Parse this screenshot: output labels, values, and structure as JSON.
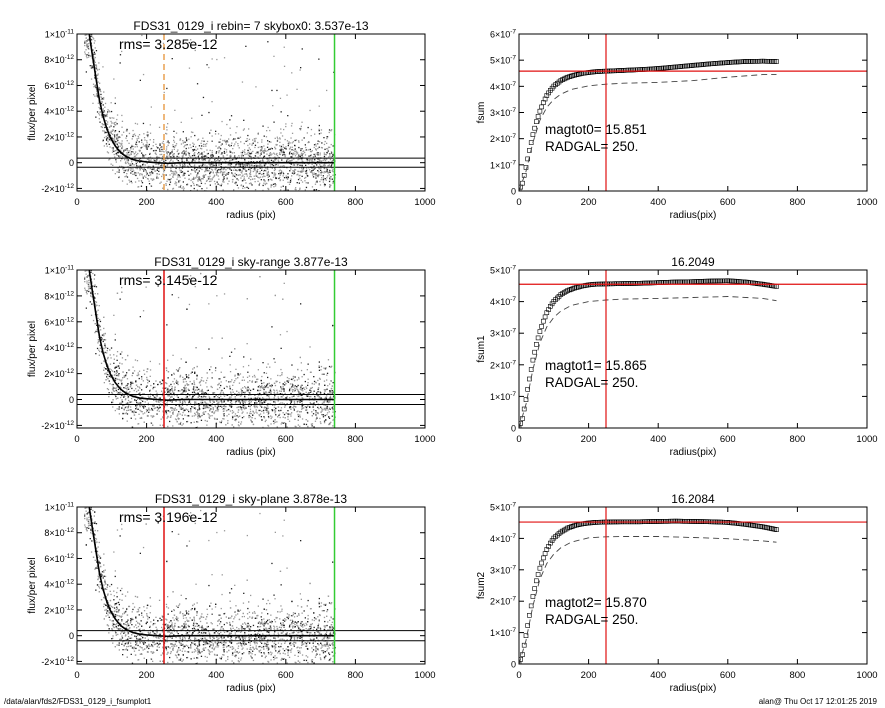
{
  "footer": {
    "path": "/data/alan/fds2/FDS31_0129_i_fsumplot1",
    "stamp": "alan@  Thu Oct 17 12:01:25 2019"
  },
  "chart_data": [
    {
      "type": "scatter",
      "title": "FDS31_0129_i rebin= 7    skybox0:  3.537e-13",
      "annotation": "rms= 3.285e-12",
      "xlabel": "radius (pix)",
      "ylabel": "flux/per pixel",
      "xlim": [
        0,
        1000
      ],
      "ylim": [
        -2.2e-12,
        1e-11
      ],
      "x_ticks": [
        "0",
        "200",
        "400",
        "600",
        "800",
        "1000"
      ],
      "y_ticks": [
        {
          "v": 1e-11,
          "base": "1×10",
          "exp": "-11"
        },
        {
          "v": 8e-12,
          "base": "8×10",
          "exp": "-12"
        },
        {
          "v": 6e-12,
          "base": "6×10",
          "exp": "-12"
        },
        {
          "v": 4e-12,
          "base": "4×10",
          "exp": "-12"
        },
        {
          "v": 2e-12,
          "base": "2×10",
          "exp": "-12"
        },
        {
          "v": 0,
          "base": "0",
          "exp": ""
        },
        {
          "v": -2e-12,
          "base": "-2×10",
          "exp": "-12"
        }
      ],
      "hlines": [
        {
          "y": 3.5e-13,
          "color": "#000000"
        },
        {
          "y": -3.5e-13,
          "color": "#000000"
        }
      ],
      "vlines": [
        {
          "x": 250,
          "color": "#e8a050",
          "dash": true
        },
        {
          "x": 740,
          "color": "#33cc33",
          "dash": false
        }
      ],
      "profile": {
        "x": [
          35,
          45,
          55,
          65,
          75,
          85,
          95,
          110,
          125,
          140,
          160,
          180,
          200,
          230,
          260,
          300,
          400,
          500,
          600,
          700,
          740
        ],
        "y": [
          1e-11,
          8.2e-12,
          6.5e-12,
          4.8e-12,
          3.6e-12,
          2.7e-12,
          2e-12,
          1.3e-12,
          8e-13,
          5e-13,
          2.5e-13,
          1.2e-13,
          6e-14,
          0,
          -5e-14,
          0,
          0,
          0,
          0,
          0,
          0
        ]
      }
    },
    {
      "type": "line",
      "title": "",
      "annotations": [
        "magtot0=  15.851",
        "RADGAL=    250."
      ],
      "xlabel": "radius(pix)",
      "ylabel": "fsum",
      "xlim": [
        0,
        1000
      ],
      "ylim": [
        0,
        6e-07
      ],
      "x_ticks": [
        "0",
        "200",
        "400",
        "600",
        "800",
        "1000"
      ],
      "y_ticks": [
        {
          "v": 6e-07,
          "base": "6×10",
          "exp": "-7"
        },
        {
          "v": 5e-07,
          "base": "5×10",
          "exp": "-7"
        },
        {
          "v": 4e-07,
          "base": "4×10",
          "exp": "-7"
        },
        {
          "v": 3e-07,
          "base": "3×10",
          "exp": "-7"
        },
        {
          "v": 2e-07,
          "base": "2×10",
          "exp": "-7"
        },
        {
          "v": 1e-07,
          "base": "1×10",
          "exp": "-7"
        },
        {
          "v": 0,
          "base": "0",
          "exp": ""
        }
      ],
      "hline": {
        "y": 4.58e-07,
        "color": "#e01010"
      },
      "vline": {
        "x": 250,
        "color": "#e01010"
      },
      "series": [
        {
          "style": "markers",
          "x": [
            0,
            10,
            20,
            30,
            40,
            50,
            60,
            70,
            80,
            90,
            100,
            120,
            140,
            160,
            180,
            200,
            220,
            250,
            300,
            350,
            400,
            450,
            500,
            550,
            600,
            650,
            700,
            740
          ],
          "y": [
            0,
            3e-08,
            9e-08,
            1.55e-07,
            2.15e-07,
            2.65e-07,
            3.05e-07,
            3.38e-07,
            3.65e-07,
            3.85e-07,
            4.01e-07,
            4.22e-07,
            4.35e-07,
            4.43e-07,
            4.49e-07,
            4.53e-07,
            4.56e-07,
            4.58e-07,
            4.61e-07,
            4.64e-07,
            4.68e-07,
            4.74e-07,
            4.8e-07,
            4.86e-07,
            4.91e-07,
            4.95e-07,
            4.96e-07,
            4.95e-07
          ]
        },
        {
          "style": "dashed",
          "x": [
            0,
            20,
            40,
            60,
            80,
            100,
            120,
            150,
            200,
            250,
            300,
            400,
            500,
            600,
            700,
            740
          ],
          "y": [
            0,
            7.5e-08,
            1.85e-07,
            2.7e-07,
            3.2e-07,
            3.5e-07,
            3.7e-07,
            3.88e-07,
            4.02e-07,
            4.08e-07,
            4.12e-07,
            4.15e-07,
            4.22e-07,
            4.35e-07,
            4.45e-07,
            4.45e-07
          ]
        }
      ]
    },
    {
      "type": "scatter",
      "title": "FDS31_0129_i sky-range  3.877e-13",
      "annotation": "rms= 3.145e-12",
      "xlabel": "radius (pix)",
      "ylabel": "flux/per pixel",
      "xlim": [
        0,
        1000
      ],
      "ylim": [
        -2.2e-12,
        1e-11
      ],
      "x_ticks": [
        "0",
        "200",
        "400",
        "600",
        "800",
        "1000"
      ],
      "y_ticks": [
        {
          "v": 1e-11,
          "base": "1×10",
          "exp": "-11"
        },
        {
          "v": 8e-12,
          "base": "8×10",
          "exp": "-12"
        },
        {
          "v": 6e-12,
          "base": "6×10",
          "exp": "-12"
        },
        {
          "v": 4e-12,
          "base": "4×10",
          "exp": "-12"
        },
        {
          "v": 2e-12,
          "base": "2×10",
          "exp": "-12"
        },
        {
          "v": 0,
          "base": "0",
          "exp": ""
        },
        {
          "v": -2e-12,
          "base": "-2×10",
          "exp": "-12"
        }
      ],
      "hlines": [
        {
          "y": 3.9e-13,
          "color": "#000000"
        },
        {
          "y": -3.9e-13,
          "color": "#000000"
        }
      ],
      "vlines": [
        {
          "x": 250,
          "color": "#e01010",
          "dash": false
        },
        {
          "x": 740,
          "color": "#33cc33",
          "dash": false
        }
      ],
      "profile": {
        "x": [
          35,
          45,
          55,
          65,
          75,
          85,
          95,
          110,
          125,
          140,
          160,
          180,
          200,
          230,
          260,
          300,
          400,
          500,
          600,
          700,
          740
        ],
        "y": [
          1e-11,
          8.2e-12,
          6.5e-12,
          4.8e-12,
          3.6e-12,
          2.7e-12,
          2e-12,
          1.3e-12,
          8e-13,
          5e-13,
          2.5e-13,
          1.2e-13,
          6e-14,
          0,
          -5e-14,
          0,
          0,
          0,
          0,
          0,
          0
        ]
      }
    },
    {
      "type": "line",
      "title": "16.2049",
      "annotations": [
        "magtot1=  15.865",
        "RADGAL=    250."
      ],
      "xlabel": "radius(pix)",
      "ylabel": "fsum1",
      "xlim": [
        0,
        1000
      ],
      "ylim": [
        0,
        5e-07
      ],
      "x_ticks": [
        "0",
        "200",
        "400",
        "600",
        "800",
        "1000"
      ],
      "y_ticks": [
        {
          "v": 5e-07,
          "base": "5×10",
          "exp": "-7"
        },
        {
          "v": 4e-07,
          "base": "4×10",
          "exp": "-7"
        },
        {
          "v": 3e-07,
          "base": "3×10",
          "exp": "-7"
        },
        {
          "v": 2e-07,
          "base": "2×10",
          "exp": "-7"
        },
        {
          "v": 1e-07,
          "base": "1×10",
          "exp": "-7"
        },
        {
          "v": 0,
          "base": "0",
          "exp": ""
        }
      ],
      "hline": {
        "y": 4.55e-07,
        "color": "#e01010"
      },
      "vline": {
        "x": 250,
        "color": "#e01010"
      },
      "series": [
        {
          "style": "markers",
          "x": [
            0,
            10,
            20,
            30,
            40,
            50,
            60,
            70,
            80,
            90,
            100,
            120,
            140,
            160,
            180,
            200,
            220,
            250,
            300,
            350,
            400,
            450,
            500,
            550,
            600,
            650,
            700,
            740
          ],
          "y": [
            0,
            3e-08,
            9e-08,
            1.55e-07,
            2.15e-07,
            2.65e-07,
            3.05e-07,
            3.38e-07,
            3.65e-07,
            3.85e-07,
            4.01e-07,
            4.22e-07,
            4.35e-07,
            4.43e-07,
            4.49e-07,
            4.53e-07,
            4.55e-07,
            4.56e-07,
            4.57e-07,
            4.58e-07,
            4.6e-07,
            4.62e-07,
            4.63e-07,
            4.65e-07,
            4.66e-07,
            4.62e-07,
            4.55e-07,
            4.48e-07
          ]
        },
        {
          "style": "dashed",
          "x": [
            0,
            20,
            40,
            60,
            80,
            100,
            120,
            150,
            200,
            250,
            300,
            400,
            500,
            600,
            700,
            740
          ],
          "y": [
            0,
            7.5e-08,
            1.85e-07,
            2.7e-07,
            3.2e-07,
            3.5e-07,
            3.7e-07,
            3.88e-07,
            4e-07,
            4.05e-07,
            4.08e-07,
            4.1e-07,
            4.13e-07,
            4.16e-07,
            4.1e-07,
            4.03e-07
          ]
        }
      ]
    },
    {
      "type": "scatter",
      "title": "FDS31_0129_i sky-plane  3.878e-13",
      "annotation": "rms= 3.196e-12",
      "xlabel": "radius (pix)",
      "ylabel": "flux/per pixel",
      "xlim": [
        0,
        1000
      ],
      "ylim": [
        -2.2e-12,
        1e-11
      ],
      "x_ticks": [
        "0",
        "200",
        "400",
        "600",
        "800",
        "1000"
      ],
      "y_ticks": [
        {
          "v": 1e-11,
          "base": "1×10",
          "exp": "-11"
        },
        {
          "v": 8e-12,
          "base": "8×10",
          "exp": "-12"
        },
        {
          "v": 6e-12,
          "base": "6×10",
          "exp": "-12"
        },
        {
          "v": 4e-12,
          "base": "4×10",
          "exp": "-12"
        },
        {
          "v": 2e-12,
          "base": "2×10",
          "exp": "-12"
        },
        {
          "v": 0,
          "base": "0",
          "exp": ""
        },
        {
          "v": -2e-12,
          "base": "-2×10",
          "exp": "-12"
        }
      ],
      "hlines": [
        {
          "y": 3.9e-13,
          "color": "#000000"
        },
        {
          "y": -3.9e-13,
          "color": "#000000"
        }
      ],
      "vlines": [
        {
          "x": 250,
          "color": "#e01010",
          "dash": false
        },
        {
          "x": 740,
          "color": "#33cc33",
          "dash": false
        }
      ],
      "profile": {
        "x": [
          35,
          45,
          55,
          65,
          75,
          85,
          95,
          110,
          125,
          140,
          160,
          180,
          200,
          230,
          260,
          300,
          400,
          500,
          600,
          700,
          740
        ],
        "y": [
          1e-11,
          8.2e-12,
          6.5e-12,
          4.8e-12,
          3.6e-12,
          2.7e-12,
          2e-12,
          1.3e-12,
          8e-13,
          5e-13,
          2.5e-13,
          1.2e-13,
          6e-14,
          0,
          -5e-14,
          0,
          0,
          0,
          0,
          0,
          0
        ]
      }
    },
    {
      "type": "line",
      "title": "16.2084",
      "annotations": [
        "magtot2=  15.870",
        "RADGAL=    250."
      ],
      "xlabel": "radius(pix)",
      "ylabel": "fsum2",
      "xlim": [
        0,
        1000
      ],
      "ylim": [
        0,
        5e-07
      ],
      "x_ticks": [
        "0",
        "200",
        "400",
        "600",
        "800",
        "1000"
      ],
      "y_ticks": [
        {
          "v": 5e-07,
          "base": "5×10",
          "exp": "-7"
        },
        {
          "v": 4e-07,
          "base": "4×10",
          "exp": "-7"
        },
        {
          "v": 3e-07,
          "base": "3×10",
          "exp": "-7"
        },
        {
          "v": 2e-07,
          "base": "2×10",
          "exp": "-7"
        },
        {
          "v": 1e-07,
          "base": "1×10",
          "exp": "-7"
        },
        {
          "v": 0,
          "base": "0",
          "exp": ""
        }
      ],
      "hline": {
        "y": 4.52e-07,
        "color": "#e01010"
      },
      "vline": {
        "x": 250,
        "color": "#e01010"
      },
      "series": [
        {
          "style": "markers",
          "x": [
            0,
            10,
            20,
            30,
            40,
            50,
            60,
            70,
            80,
            90,
            100,
            120,
            140,
            160,
            180,
            200,
            220,
            250,
            300,
            350,
            400,
            450,
            500,
            550,
            600,
            650,
            700,
            740
          ],
          "y": [
            0,
            3e-08,
            9e-08,
            1.55e-07,
            2.15e-07,
            2.65e-07,
            3.05e-07,
            3.38e-07,
            3.65e-07,
            3.85e-07,
            4.01e-07,
            4.2e-07,
            4.33e-07,
            4.41e-07,
            4.46e-07,
            4.49e-07,
            4.51e-07,
            4.52e-07,
            4.53e-07,
            4.53e-07,
            4.54e-07,
            4.55e-07,
            4.54e-07,
            4.53e-07,
            4.51e-07,
            4.45e-07,
            4.37e-07,
            4.28e-07
          ]
        },
        {
          "style": "dashed",
          "x": [
            0,
            20,
            40,
            60,
            80,
            100,
            120,
            150,
            200,
            250,
            300,
            400,
            500,
            600,
            700,
            740
          ],
          "y": [
            0,
            7.5e-08,
            1.85e-07,
            2.7e-07,
            3.2e-07,
            3.5e-07,
            3.7e-07,
            3.88e-07,
            4.02e-07,
            4.05e-07,
            4.06e-07,
            4.06e-07,
            4.03e-07,
            3.99e-07,
            3.92e-07,
            3.88e-07
          ]
        }
      ]
    }
  ]
}
